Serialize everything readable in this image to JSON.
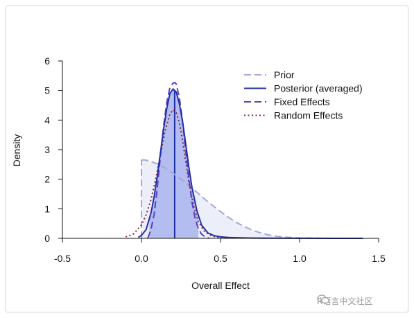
{
  "chart_data": {
    "type": "area",
    "xlabel": "Overall Effect",
    "ylabel": "Density",
    "xlim": [
      -0.5,
      1.5
    ],
    "ylim": [
      0,
      6
    ],
    "x_ticks": [
      -0.5,
      0.0,
      0.5,
      1.0,
      1.5
    ],
    "x_tick_labels": [
      "-0.5",
      "0.0",
      "0.5",
      "1.0",
      "1.5"
    ],
    "y_ticks": [
      0,
      1,
      2,
      3,
      4,
      5,
      6
    ],
    "y_tick_labels": [
      "0",
      "1",
      "2",
      "3",
      "4",
      "5",
      "6"
    ],
    "legend_position": "top-right",
    "series": [
      {
        "name": "Prior",
        "style": "dashed",
        "color": "#a3a9d6",
        "fill": "#eceefa",
        "x": [
          0.0,
          0.02,
          0.05,
          0.1,
          0.15,
          0.2,
          0.25,
          0.3,
          0.35,
          0.4,
          0.45,
          0.5,
          0.55,
          0.6,
          0.65,
          0.7,
          0.75,
          0.8,
          0.85,
          0.9,
          0.95,
          1.0,
          1.1,
          1.2,
          1.3,
          1.4
        ],
        "y": [
          2.65,
          2.65,
          2.62,
          2.52,
          2.38,
          2.2,
          2.0,
          1.78,
          1.56,
          1.33,
          1.11,
          0.9,
          0.71,
          0.54,
          0.4,
          0.28,
          0.19,
          0.12,
          0.075,
          0.045,
          0.025,
          0.014,
          0.005,
          0.002,
          0.001,
          0.0
        ]
      },
      {
        "name": "Posterior (averaged)",
        "style": "solid",
        "color": "#1f2fa6",
        "fill": "#b4bdf0",
        "x": [
          -0.02,
          0.0,
          0.03,
          0.06,
          0.08,
          0.1,
          0.12,
          0.14,
          0.16,
          0.18,
          0.2,
          0.22,
          0.24,
          0.26,
          0.28,
          0.3,
          0.32,
          0.35,
          0.38,
          0.42,
          0.46,
          0.5,
          0.55,
          0.6,
          0.7,
          0.8,
          1.0,
          1.2,
          1.4
        ],
        "y": [
          0.03,
          0.1,
          0.3,
          0.85,
          1.4,
          2.1,
          2.9,
          3.7,
          4.4,
          4.9,
          5.05,
          4.95,
          4.55,
          3.95,
          3.2,
          2.4,
          1.7,
          0.95,
          0.45,
          0.18,
          0.09,
          0.05,
          0.03,
          0.02,
          0.01,
          0.005,
          0.002,
          0.001,
          0.0
        ]
      },
      {
        "name": "Fixed Effects",
        "style": "dashed",
        "color": "#5b3fbf",
        "x": [
          0.04,
          0.06,
          0.08,
          0.1,
          0.12,
          0.14,
          0.16,
          0.18,
          0.2,
          0.21,
          0.22,
          0.24,
          0.26,
          0.28,
          0.3,
          0.32,
          0.34,
          0.36,
          0.38,
          0.4,
          0.43
        ],
        "y": [
          0.0,
          0.3,
          0.8,
          1.7,
          2.8,
          3.8,
          4.6,
          5.1,
          5.25,
          5.27,
          5.22,
          4.75,
          3.95,
          2.95,
          2.0,
          1.2,
          0.65,
          0.32,
          0.14,
          0.06,
          0.0
        ]
      },
      {
        "name": "Random Effects",
        "style": "dotted",
        "color": "#8b1f3a",
        "x": [
          -0.1,
          -0.05,
          0.0,
          0.03,
          0.06,
          0.09,
          0.12,
          0.15,
          0.18,
          0.2,
          0.22,
          0.24,
          0.26,
          0.28,
          0.3,
          0.33,
          0.36,
          0.4,
          0.45,
          0.5,
          0.55
        ],
        "y": [
          0.05,
          0.15,
          0.45,
          0.8,
          1.3,
          2.0,
          2.85,
          3.65,
          4.2,
          4.35,
          4.25,
          3.9,
          3.3,
          2.6,
          1.9,
          1.1,
          0.55,
          0.22,
          0.07,
          0.02,
          0.0
        ]
      }
    ],
    "credible_interval": {
      "lower": 0.05,
      "upper": 0.36,
      "fill": "#b4bdf0"
    },
    "posterior_mean_line": {
      "x": 0.21,
      "color": "#1f2fa6"
    }
  },
  "watermark": {
    "icon": "wechat-icon",
    "text": "R语言中文社区"
  }
}
